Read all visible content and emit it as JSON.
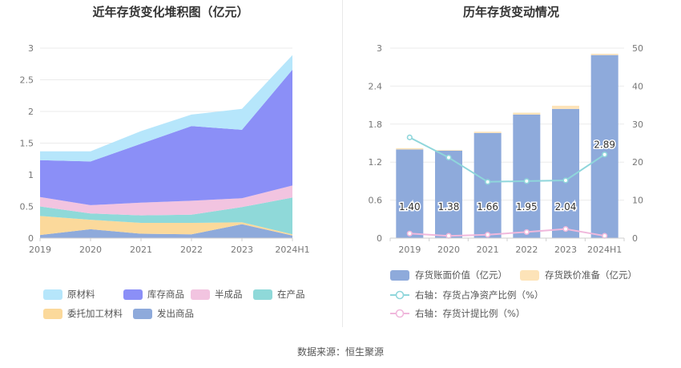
{
  "footer": {
    "source": "数据来源：恒生聚源"
  },
  "chart_data": [
    {
      "type": "area",
      "title": "近年存货变化堆积图（亿元）",
      "categories": [
        "2019",
        "2020",
        "2021",
        "2022",
        "2023",
        "2024H1"
      ],
      "ylim": [
        0,
        3
      ],
      "yticks": [
        "0",
        "0.5",
        "1",
        "1.5",
        "2",
        "2.5",
        "3"
      ],
      "grid": true,
      "legend_position": "bottom",
      "series": [
        {
          "name": "发出商品",
          "color": "#8eaadb",
          "values": [
            0.05,
            0.14,
            0.07,
            0.06,
            0.22,
            0.04
          ]
        },
        {
          "name": "委托加工材料",
          "color": "#fbd99b",
          "values": [
            0.3,
            0.15,
            0.17,
            0.18,
            0.03,
            0.02
          ]
        },
        {
          "name": "在产品",
          "color": "#8fd9d9",
          "values": [
            0.15,
            0.1,
            0.12,
            0.13,
            0.24,
            0.58
          ]
        },
        {
          "name": "半成品",
          "color": "#f2c4e0",
          "values": [
            0.15,
            0.13,
            0.2,
            0.22,
            0.14,
            0.19
          ]
        },
        {
          "name": "库存商品",
          "color": "#8b8ff7",
          "values": [
            0.58,
            0.69,
            0.93,
            1.18,
            1.08,
            1.83
          ]
        },
        {
          "name": "原材料",
          "color": "#b6e6fb",
          "values": [
            0.14,
            0.16,
            0.2,
            0.18,
            0.33,
            0.23
          ]
        }
      ],
      "legend_order": [
        "原材料",
        "库存商品",
        "半成品",
        "在产品",
        "委托加工材料",
        "发出商品"
      ]
    },
    {
      "type": "bar",
      "title": "历年存货变动情况",
      "categories": [
        "2019",
        "2020",
        "2021",
        "2022",
        "2023",
        "2024H1"
      ],
      "ylim": [
        0,
        3
      ],
      "yticks": [
        "0",
        "0.6",
        "1.2",
        "1.8",
        "2.4",
        "3"
      ],
      "ylim_right": [
        0,
        50
      ],
      "yticks_right": [
        "0",
        "10",
        "20",
        "30",
        "40",
        "50"
      ],
      "grid": true,
      "legend_position": "bottom",
      "bar_series": [
        {
          "name": "存货账面价值（亿元）",
          "color": "#8eaadb",
          "values": [
            1.4,
            1.38,
            1.66,
            1.95,
            2.04,
            2.89
          ],
          "labels": [
            "1.40",
            "1.38",
            "1.66",
            "1.95",
            "2.04",
            "2.89"
          ]
        },
        {
          "name": "存货跌价准备（亿元）",
          "color": "#fde3b8",
          "values": [
            0.02,
            0.01,
            0.02,
            0.03,
            0.05,
            0.02
          ]
        }
      ],
      "line_series": [
        {
          "name": "右轴：存货占净资产比例（%）",
          "color": "#8fd6db",
          "axis": "right",
          "values": [
            26.5,
            21.2,
            14.8,
            15.0,
            15.2,
            22.0
          ]
        },
        {
          "name": "右轴：存货计提比例（%）",
          "color": "#f0b8dc",
          "axis": "right",
          "values": [
            1.2,
            0.6,
            0.9,
            1.6,
            2.4,
            0.6
          ]
        }
      ]
    }
  ]
}
